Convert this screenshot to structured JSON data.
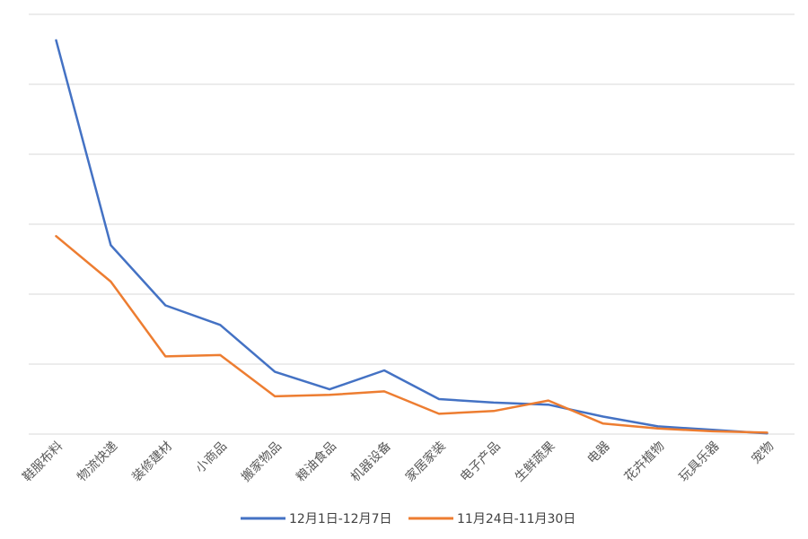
{
  "chart_data": {
    "type": "line",
    "title": "",
    "xlabel": "",
    "ylabel": "",
    "categories": [
      "鞋服布料",
      "物流快递",
      "装修建材",
      "小商品",
      "搬家物品",
      "粮油食品",
      "机器设备",
      "家居家装",
      "电子产品",
      "生鲜蔬果",
      "电器",
      "花卉植物",
      "玩具乐器",
      "宠物"
    ],
    "ylim": [
      0,
      60
    ],
    "grid": true,
    "legend_position": "bottom",
    "series": [
      {
        "name": "12月1日-12月7日",
        "color": "#4472c4",
        "values": [
          56.3,
          27.0,
          18.4,
          15.6,
          8.9,
          6.4,
          9.1,
          5.0,
          4.5,
          4.2,
          2.5,
          1.1,
          0.6,
          0.1
        ]
      },
      {
        "name": "11月24日-11月30日",
        "color": "#ed7d31",
        "values": [
          28.3,
          21.8,
          11.1,
          11.3,
          5.4,
          5.6,
          6.1,
          2.9,
          3.3,
          4.8,
          1.5,
          0.8,
          0.4,
          0.2
        ]
      }
    ]
  }
}
